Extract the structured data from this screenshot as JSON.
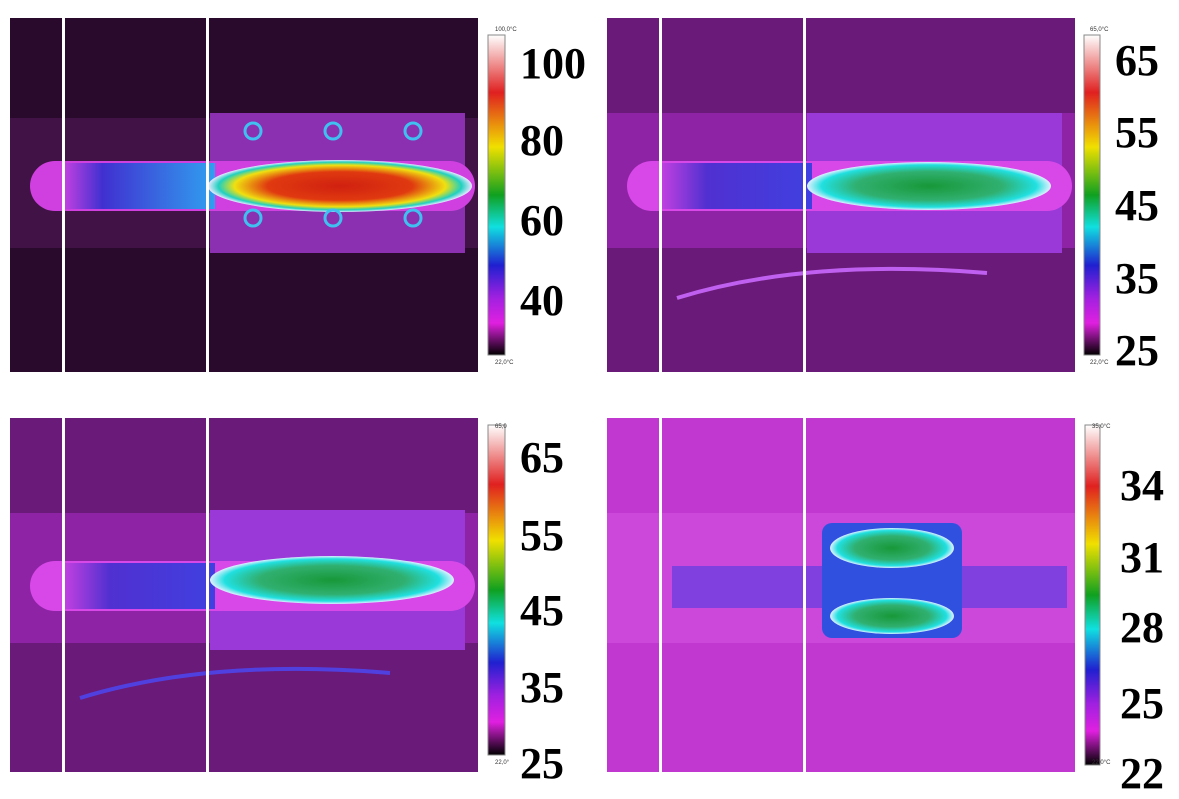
{
  "panels": [
    {
      "scale_top": "100,0°C",
      "scale_bottom": "22,0°C",
      "scale_ticks": [
        100,
        80,
        60,
        40
      ]
    },
    {
      "scale_top": "65,0°C",
      "scale_bottom": "22,0°C",
      "scale_ticks": [
        65,
        55,
        45,
        35,
        25
      ]
    },
    {
      "scale_top": "65,0",
      "scale_bottom": "22,0°",
      "scale_ticks": [
        65,
        55,
        45,
        35,
        25
      ]
    },
    {
      "scale_top": "35,0°C",
      "scale_bottom": "22,0°C",
      "scale_ticks": [
        34,
        31,
        28,
        25,
        22
      ]
    }
  ]
}
